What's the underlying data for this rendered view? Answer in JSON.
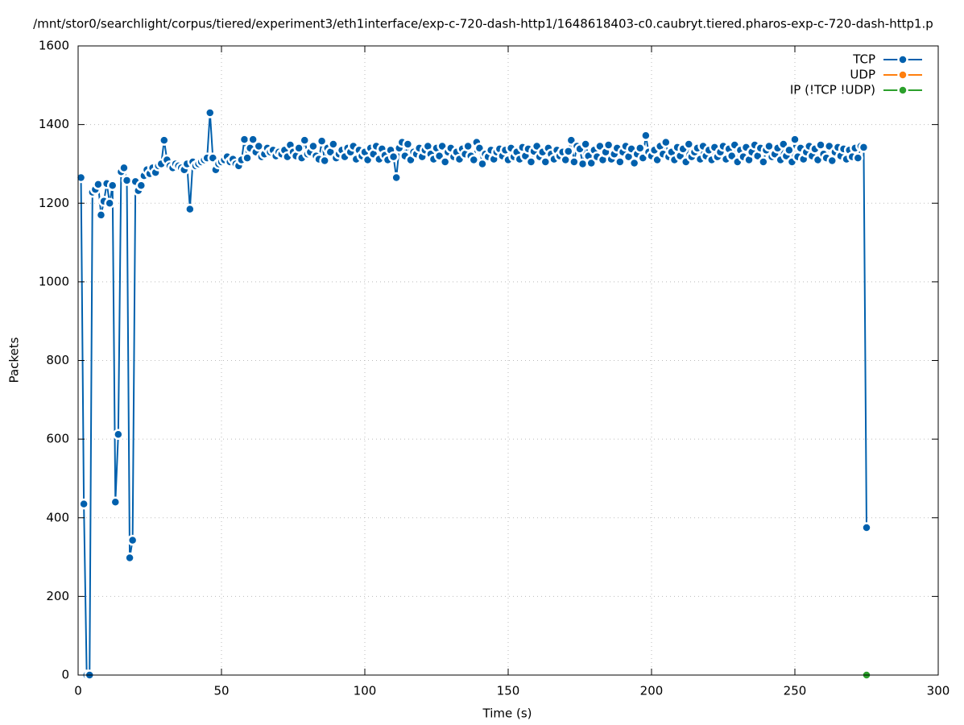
{
  "chart_data": {
    "type": "line",
    "title": "/mnt/stor0/searchlight/corpus/tiered/experiment3/eth1interface/exp-c-720-dash-http1/1648618403-c0.caubryt.tiered.pharos-exp-c-720-dash-http1.p",
    "x_label": "Time (s)",
    "y_label": "Packets",
    "xlim": [
      0,
      300
    ],
    "xticks": [
      0,
      50,
      100,
      150,
      200,
      250,
      300
    ],
    "ylim": [
      0,
      1600
    ],
    "yticks": [
      0,
      200,
      400,
      600,
      800,
      1000,
      1200,
      1400,
      1600
    ],
    "grid": true,
    "legend": "top-right",
    "series": [
      {
        "name": "TCP",
        "color": "#0060ad",
        "x": [
          1,
          2,
          3,
          4,
          5,
          6,
          7,
          8,
          9,
          10,
          11,
          12,
          13,
          14,
          15,
          16,
          17,
          18,
          19,
          20,
          21,
          22,
          23,
          24,
          25,
          26,
          27,
          28,
          29,
          30,
          31,
          32,
          33,
          34,
          35,
          36,
          37,
          38,
          39,
          40,
          41,
          42,
          43,
          44,
          45,
          46,
          47,
          48,
          49,
          50,
          51,
          52,
          53,
          54,
          55,
          56,
          57,
          58,
          59,
          60,
          61,
          62,
          63,
          64,
          65,
          66,
          67,
          68,
          69,
          70,
          71,
          72,
          73,
          74,
          75,
          76,
          77,
          78,
          79,
          80,
          81,
          82,
          83,
          84,
          85,
          86,
          87,
          88,
          89,
          90,
          91,
          92,
          93,
          94,
          95,
          96,
          97,
          98,
          99,
          100,
          101,
          102,
          103,
          104,
          105,
          106,
          107,
          108,
          109,
          110,
          111,
          112,
          113,
          114,
          115,
          116,
          117,
          118,
          119,
          120,
          121,
          122,
          123,
          124,
          125,
          126,
          127,
          128,
          129,
          130,
          131,
          132,
          133,
          134,
          135,
          136,
          137,
          138,
          139,
          140,
          141,
          142,
          143,
          144,
          145,
          146,
          147,
          148,
          149,
          150,
          151,
          152,
          153,
          154,
          155,
          156,
          157,
          158,
          159,
          160,
          161,
          162,
          163,
          164,
          165,
          166,
          167,
          168,
          169,
          170,
          171,
          172,
          173,
          174,
          175,
          176,
          177,
          178,
          179,
          180,
          181,
          182,
          183,
          184,
          185,
          186,
          187,
          188,
          189,
          190,
          191,
          192,
          193,
          194,
          195,
          196,
          197,
          198,
          199,
          200,
          201,
          202,
          203,
          204,
          205,
          206,
          207,
          208,
          209,
          210,
          211,
          212,
          213,
          214,
          215,
          216,
          217,
          218,
          219,
          220,
          221,
          222,
          223,
          224,
          225,
          226,
          227,
          228,
          229,
          230,
          231,
          232,
          233,
          234,
          235,
          236,
          237,
          238,
          239,
          240,
          241,
          242,
          243,
          244,
          245,
          246,
          247,
          248,
          249,
          250,
          251,
          252,
          253,
          254,
          255,
          256,
          257,
          258,
          259,
          260,
          261,
          262,
          263,
          264,
          265,
          266,
          267,
          268,
          269,
          270,
          271,
          272,
          273,
          274,
          275
        ],
        "values": [
          1265,
          435,
          0,
          0,
          1228,
          1235,
          1248,
          1170,
          1205,
          1250,
          1200,
          1245,
          440,
          612,
          1280,
          1290,
          1258,
          298,
          343,
          1255,
          1232,
          1245,
          1270,
          1285,
          1275,
          1290,
          1278,
          1295,
          1300,
          1360,
          1310,
          1295,
          1290,
          1300,
          1295,
          1290,
          1285,
          1300,
          1185,
          1305,
          1295,
          1300,
          1305,
          1310,
          1315,
          1430,
          1315,
          1285,
          1300,
          1305,
          1310,
          1318,
          1305,
          1312,
          1300,
          1295,
          1310,
          1362,
          1315,
          1340,
          1362,
          1330,
          1345,
          1318,
          1325,
          1340,
          1330,
          1335,
          1320,
          1330,
          1325,
          1335,
          1318,
          1348,
          1330,
          1320,
          1340,
          1315,
          1360,
          1325,
          1330,
          1345,
          1320,
          1312,
          1358,
          1308,
          1340,
          1330,
          1350,
          1315,
          1325,
          1335,
          1318,
          1340,
          1330,
          1345,
          1312,
          1335,
          1320,
          1330,
          1310,
          1340,
          1325,
          1345,
          1312,
          1338,
          1322,
          1310,
          1335,
          1318,
          1265,
          1340,
          1355,
          1320,
          1350,
          1310,
          1330,
          1325,
          1340,
          1318,
          1335,
          1345,
          1325,
          1312,
          1340,
          1320,
          1345,
          1305,
          1330,
          1340,
          1318,
          1330,
          1312,
          1338,
          1325,
          1345,
          1320,
          1310,
          1355,
          1340,
          1300,
          1325,
          1318,
          1335,
          1312,
          1330,
          1338,
          1320,
          1335,
          1310,
          1340,
          1318,
          1330,
          1312,
          1342,
          1320,
          1338,
          1305,
          1332,
          1345,
          1318,
          1330,
          1305,
          1340,
          1325,
          1312,
          1335,
          1320,
          1330,
          1310,
          1332,
          1360,
          1305,
          1345,
          1338,
          1300,
          1350,
          1320,
          1302,
          1335,
          1318,
          1345,
          1310,
          1330,
          1348,
          1312,
          1325,
          1340,
          1305,
          1330,
          1345,
          1318,
          1338,
          1302,
          1325,
          1340,
          1315,
          1372,
          1330,
          1320,
          1335,
          1310,
          1345,
          1325,
          1355,
          1318,
          1330,
          1310,
          1342,
          1320,
          1338,
          1305,
          1350,
          1318,
          1330,
          1340,
          1312,
          1345,
          1320,
          1335,
          1310,
          1342,
          1318,
          1330,
          1345,
          1312,
          1338,
          1320,
          1348,
          1305,
          1335,
          1318,
          1342,
          1310,
          1330,
          1348,
          1320,
          1340,
          1305,
          1335,
          1345,
          1318,
          1325,
          1340,
          1310,
          1350,
          1320,
          1335,
          1305,
          1362,
          1318,
          1340,
          1312,
          1330,
          1345,
          1320,
          1338,
          1310,
          1348,
          1325,
          1315,
          1345,
          1308,
          1330,
          1342,
          1320,
          1338,
          1312,
          1335,
          1318,
          1340,
          1315,
          1345,
          1342,
          375
        ]
      },
      {
        "name": "UDP",
        "color": "#ff7f0e",
        "x": [],
        "values": []
      },
      {
        "name": "IP (!TCP  !UDP)",
        "color": "#2ca02c",
        "x": [
          275
        ],
        "values": [
          0
        ]
      }
    ]
  }
}
